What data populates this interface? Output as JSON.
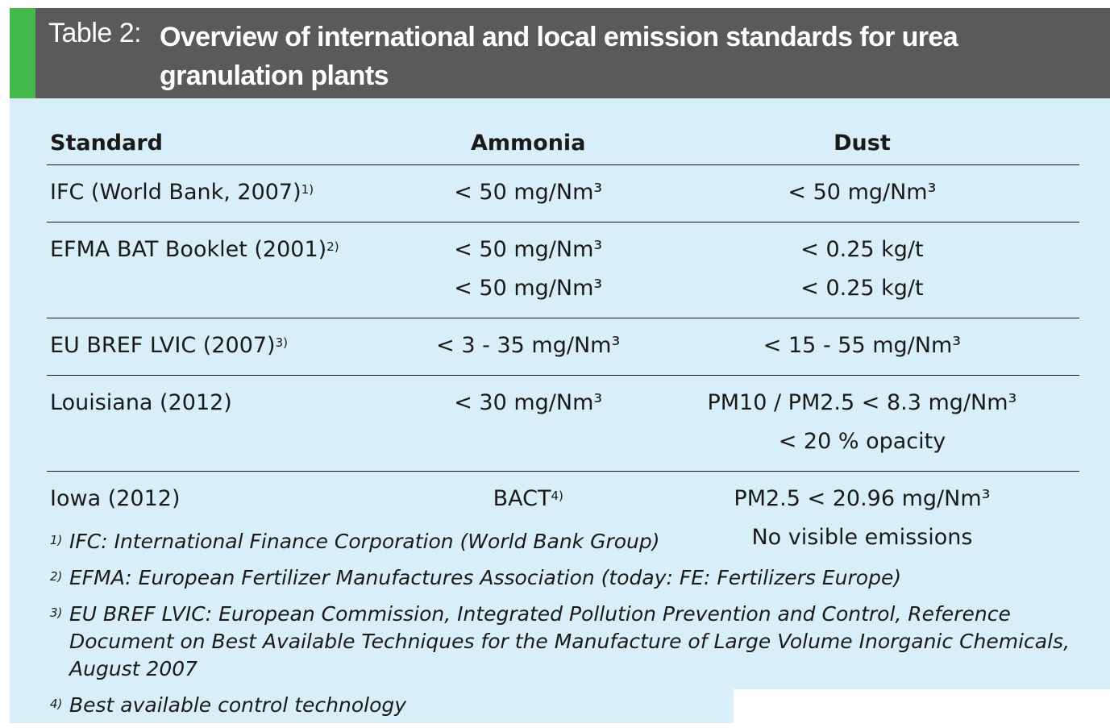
{
  "header": {
    "title_prefix": "Table 2:",
    "title": "Overview of international and local emission standards for urea granulation plants",
    "accent_color": "#44b84b",
    "bar_color": "#5b5a5b"
  },
  "table": {
    "columns": [
      "Standard",
      "Ammonia",
      "Dust"
    ],
    "rows": [
      {
        "standard": "IFC (World Bank, 2007)",
        "note": "1)",
        "ammonia": [
          "< 50 mg/Nm³"
        ],
        "dust": [
          "< 50 mg/Nm³"
        ]
      },
      {
        "standard": "EFMA BAT Booklet (2001)",
        "note": "2)",
        "ammonia": [
          "< 50 mg/Nm³",
          "< 50 mg/Nm³"
        ],
        "dust": [
          "< 0.25 kg/t",
          "< 0.25 kg/t"
        ]
      },
      {
        "standard": "EU BREF LVIC (2007)",
        "note": "3)",
        "ammonia": [
          "< 3 - 35 mg/Nm³"
        ],
        "dust": [
          "< 15 - 55 mg/Nm³"
        ]
      },
      {
        "standard": "Louisiana (2012)",
        "note": "",
        "ammonia": [
          "< 30 mg/Nm³"
        ],
        "dust": [
          "PM10 / PM2.5 < 8.3 mg/Nm³",
          "< 20 % opacity"
        ]
      },
      {
        "standard": "Iowa (2012)",
        "note": "",
        "ammonia": [
          "BACT"
        ],
        "ammonia_note": "4)",
        "dust": [
          "PM2.5 < 20.96 mg/Nm³",
          "No visible emissions"
        ]
      }
    ]
  },
  "footnotes": [
    {
      "num": "1)",
      "text": "IFC: International Finance Corporation (World Bank Group)"
    },
    {
      "num": "2)",
      "text": "EFMA: European Fertilizer Manufactures Association (today: FE: Fertilizers Europe)"
    },
    {
      "num": "3)",
      "text": "EU BREF LVIC: European Commission, Integrated Pollution Prevention and Control, Reference Document on Best Available Techniques for the Manufacture of Large Volume Inorganic Chemicals, August 2007"
    },
    {
      "num": "4)",
      "text": "Best available control technology"
    }
  ]
}
